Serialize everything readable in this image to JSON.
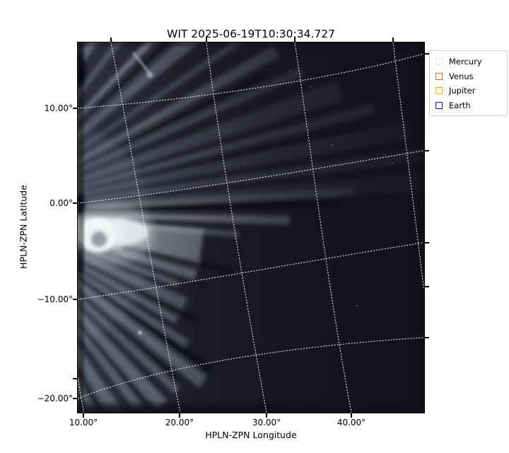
{
  "title": "WIT 2025-06-19T10:30:34.727",
  "axes": {
    "xlabel": "HPLN-ZPN Longitude",
    "ylabel": "HPLN-ZPN Latitude",
    "x_tick_labels": [
      "10.00°",
      "20.00°",
      "30.00°",
      "40.00°"
    ],
    "y_tick_labels": [
      "10.00°",
      "0.00°",
      "−10.00°",
      "−20.00°"
    ]
  },
  "legend": {
    "items": [
      {
        "label": "Mercury",
        "color": "#e6e6e6"
      },
      {
        "label": "Venus",
        "color": "#d2691e"
      },
      {
        "label": "Jupiter",
        "color": "#ffa500"
      },
      {
        "label": "Earth",
        "color": "#0000ff"
      }
    ]
  },
  "chart_data": {
    "type": "heatmap",
    "title": "WIT 2025-06-19T10:30:34.727",
    "xlabel": "HPLN-ZPN Longitude",
    "ylabel": "HPLN-ZPN Latitude",
    "x_ticks_deg": [
      10,
      20,
      30,
      40
    ],
    "y_ticks_deg": [
      10,
      0,
      -10,
      -20
    ],
    "xlim_deg": [
      9.4,
      48.6
    ],
    "ylim_deg": [
      -21.5,
      17.0
    ],
    "grid": "white dotted curved WCS graticule, on",
    "legend_position": "upper right, outside axes",
    "legend_entries": [
      "Mercury",
      "Venus",
      "Jupiter",
      "Earth"
    ],
    "image_description": "Grayscale-blue heliospheric imager frame: coronal streamers fan out from the Sun located off the left edge; a bright compact transient sits near longitude 11°, latitude −3°; brightness fades toward the right; intensity alternates between bright rays and dark lanes; no planet markers visible inside the field of view"
  }
}
